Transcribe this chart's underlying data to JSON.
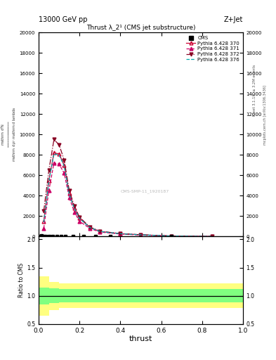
{
  "title": "13000 GeV pp",
  "subtitle": "Thrust λ_2¹ (CMS jet substructure)",
  "right_label": "Z+Jet",
  "right_side_text": "Rivet 3.1.10, ≥ 3.2M events",
  "right_side_text2": "mcplots.cern.ch [arXiv:1306.3436]",
  "watermark": "CMS-SMP-11_1920187",
  "xlabel": "thrust",
  "cms_x": [
    0.005,
    0.015,
    0.025,
    0.035,
    0.05,
    0.07,
    0.09,
    0.11,
    0.13,
    0.17,
    0.22,
    0.28,
    0.35,
    0.65
  ],
  "cms_y": [
    50,
    80,
    60,
    50,
    40,
    35,
    30,
    25,
    20,
    15,
    12,
    10,
    8,
    5
  ],
  "thrust_x": [
    0.025,
    0.05,
    0.075,
    0.1,
    0.125,
    0.15,
    0.175,
    0.2,
    0.25,
    0.3,
    0.4,
    0.5,
    0.65,
    0.85
  ],
  "py370_y": [
    1500,
    5500,
    8200,
    8100,
    7000,
    4200,
    2800,
    1800,
    900,
    500,
    280,
    170,
    50,
    8
  ],
  "py371_y": [
    800,
    4500,
    7200,
    7100,
    6200,
    3800,
    2400,
    1500,
    800,
    440,
    240,
    140,
    40,
    6
  ],
  "py372_y": [
    2500,
    6500,
    9500,
    9000,
    7500,
    4500,
    3000,
    1900,
    950,
    520,
    290,
    175,
    55,
    9
  ],
  "py376_y": [
    1400,
    5400,
    8100,
    8000,
    6900,
    4100,
    2750,
    1780,
    890,
    495,
    275,
    168,
    48,
    7
  ],
  "ratio_bins": [
    0.0,
    0.02,
    0.05,
    0.1,
    0.15,
    1.0
  ],
  "ratio_yellow_lo": [
    0.65,
    0.65,
    0.75,
    0.78,
    0.78,
    0.78
  ],
  "ratio_yellow_hi": [
    1.35,
    1.35,
    1.25,
    1.22,
    1.22,
    1.22
  ],
  "ratio_green_lo": [
    0.85,
    0.85,
    0.87,
    0.88,
    0.88,
    0.88
  ],
  "ratio_green_hi": [
    1.15,
    1.15,
    1.13,
    1.12,
    1.12,
    1.12
  ],
  "cms_color": "#000000",
  "py370_color": "#cc0033",
  "py371_color": "#cc0066",
  "py372_color": "#880022",
  "py376_color": "#00aaaa",
  "yellow_color": "#ffff80",
  "green_color": "#80ff80",
  "background_color": "#ffffff",
  "ylim_main": [
    0,
    20000
  ],
  "yticks_main": [
    0,
    2000,
    4000,
    6000,
    8000,
    10000,
    12000,
    14000,
    16000,
    18000,
    20000
  ],
  "ylim_ratio": [
    0.5,
    2.05
  ],
  "yticks_ratio": [
    0.5,
    1.0,
    1.5,
    2.0
  ]
}
